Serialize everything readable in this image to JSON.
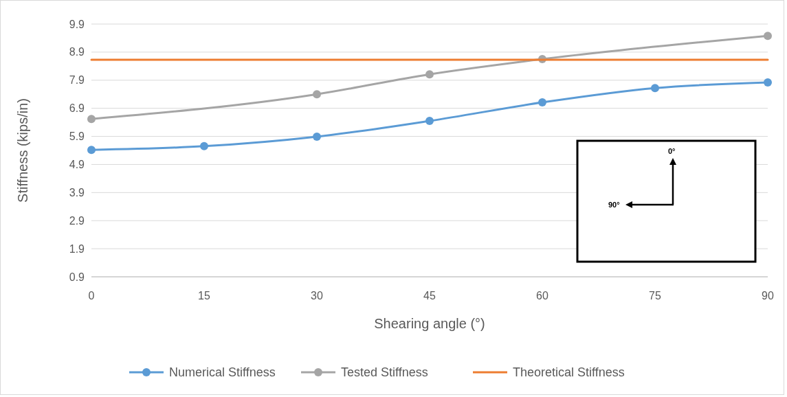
{
  "chart_data": {
    "type": "line",
    "xlabel": "Shearing angle (°)",
    "ylabel": "Stiffness (kips/in)",
    "xlim": [
      0,
      90
    ],
    "xticks": [
      0,
      15,
      30,
      45,
      60,
      75,
      90
    ],
    "ylim": [
      0.9,
      9.9
    ],
    "yticks": [
      {
        "value": 0.9,
        "label": "0.9"
      },
      {
        "value": 1.9,
        "label": "1.9"
      },
      {
        "value": 2.9,
        "label": "2.9"
      },
      {
        "value": 3.9,
        "label": "3.9"
      },
      {
        "value": 4.9,
        "label": "4.9"
      },
      {
        "value": 5.9,
        "label": "5.9"
      },
      {
        "value": 6.9,
        "label": "6.9"
      },
      {
        "value": 7.9,
        "label": "7.9"
      },
      {
        "value": 8.9,
        "label": "8.9"
      },
      {
        "value": 9.9,
        "label": "9.9"
      }
    ],
    "grid": "y",
    "legend": "bottom",
    "series": [
      {
        "name": "Numerical Stiffness",
        "color": "#5b9bd5",
        "marker": "circle",
        "x": [
          0,
          15,
          30,
          45,
          60,
          75,
          90
        ],
        "values": [
          5.42,
          5.55,
          5.89,
          6.45,
          7.11,
          7.62,
          7.82
        ]
      },
      {
        "name": "Tested Stiffness",
        "color": "#a5a5a5",
        "marker": "circle",
        "x": [
          0,
          30,
          45,
          60,
          90
        ],
        "values": [
          6.52,
          7.4,
          8.11,
          8.65,
          9.48
        ]
      },
      {
        "name": "Theoretical Stiffness",
        "color": "#ed7d31",
        "marker": "none",
        "x": [
          0,
          90
        ],
        "values": [
          8.63,
          8.63
        ]
      }
    ],
    "annotations": [
      "0°",
      "90°"
    ]
  }
}
